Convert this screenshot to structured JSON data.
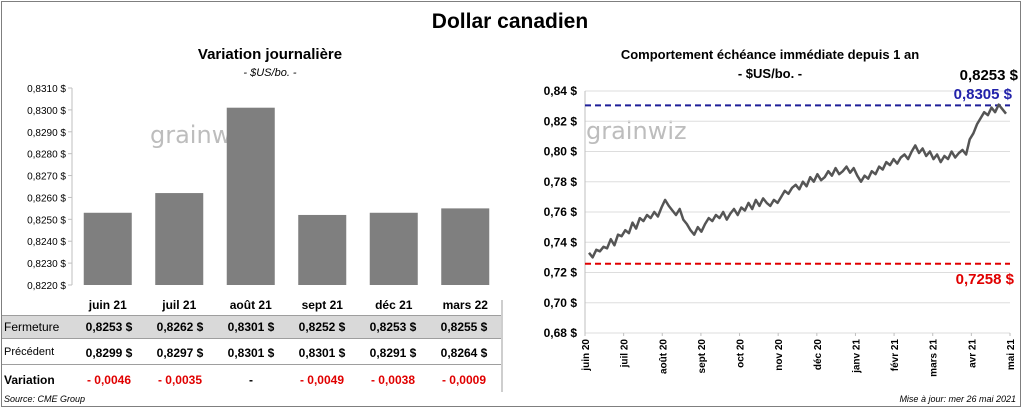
{
  "title": "Dollar canadien",
  "footer": {
    "source": "Source: CME Group",
    "updated": "Mise à jour: mer 26 mai 2021"
  },
  "left_chart": {
    "title": "Variation  journalière",
    "subtitle": "- $US/bo. -",
    "watermark": "grainwiz",
    "chart_data": {
      "type": "bar",
      "categories": [
        "juin 21",
        "juil 21",
        "août 21",
        "sept 21",
        "déc 21",
        "mars 22"
      ],
      "values": [
        0.8253,
        0.8262,
        0.8301,
        0.8252,
        0.8253,
        0.8255
      ],
      "ylim": [
        0.822,
        0.831
      ],
      "yticks": [
        "0,8220 $",
        "0,8230 $",
        "0,8240 $",
        "0,8250 $",
        "0,8260 $",
        "0,8270 $",
        "0,8280 $",
        "0,8290 $",
        "0,8300 $",
        "0,8310 $"
      ],
      "grid": false,
      "bar_color": "#7f7f7f"
    },
    "table": {
      "fermeture": {
        "label": "Fermeture",
        "values": [
          "0,8253  $",
          "0,8262  $",
          "0,8301  $",
          "0,8252  $",
          "0,8253  $",
          "0,8255  $"
        ]
      },
      "precedent": {
        "label": "Précédent",
        "values": [
          "0,8299  $",
          "0,8297  $",
          "0,8301  $",
          "0,8301  $",
          "0,8291  $",
          "0,8264  $"
        ]
      },
      "variation": {
        "label": "Variation",
        "values": [
          "- 0,0046",
          "- 0,0035",
          "-",
          "- 0,0049",
          "- 0,0038",
          "- 0,0009"
        ]
      }
    }
  },
  "right_chart": {
    "title": "Comportement échéance immédiate depuis 1 an",
    "subtitle": "- $US/bo. -",
    "watermark": "grainwiz",
    "annotations": {
      "last": "0,8253 $",
      "high": "0,8305 $",
      "low": "0,7258 $"
    },
    "chart_data": {
      "type": "line",
      "ylim": [
        0.68,
        0.84
      ],
      "yticks": [
        "0,68 $",
        "0,70 $",
        "0,72 $",
        "0,74 $",
        "0,76 $",
        "0,78 $",
        "0,80 $",
        "0,82 $",
        "0,84 $"
      ],
      "xticks": [
        "juin 20",
        "juil 20",
        "août 20",
        "sept 20",
        "oct 20",
        "nov 20",
        "déc 20",
        "janv 21",
        "févr 21",
        "mars 21",
        "avr 21",
        "mai 21"
      ],
      "high_line": 0.8305,
      "low_line": 0.7258,
      "high_color": "#1f1f99",
      "low_color": "#e00000",
      "line_color": "#555555",
      "grid": true,
      "series": [
        {
          "values": [
            0.733,
            0.73,
            0.735,
            0.734,
            0.737,
            0.736,
            0.742,
            0.738,
            0.745,
            0.744,
            0.748,
            0.746,
            0.753,
            0.749,
            0.756,
            0.754,
            0.758,
            0.756,
            0.76,
            0.757,
            0.763,
            0.768,
            0.764,
            0.761,
            0.758,
            0.762,
            0.755,
            0.752,
            0.748,
            0.745,
            0.75,
            0.747,
            0.752,
            0.756,
            0.754,
            0.758,
            0.756,
            0.76,
            0.755,
            0.759,
            0.762,
            0.758,
            0.763,
            0.761,
            0.766,
            0.762,
            0.768,
            0.764,
            0.769,
            0.766,
            0.764,
            0.768,
            0.766,
            0.77,
            0.774,
            0.772,
            0.776,
            0.778,
            0.775,
            0.78,
            0.777,
            0.783,
            0.78,
            0.785,
            0.781,
            0.783,
            0.787,
            0.784,
            0.789,
            0.785,
            0.787,
            0.79,
            0.786,
            0.789,
            0.784,
            0.78,
            0.784,
            0.782,
            0.787,
            0.785,
            0.79,
            0.788,
            0.793,
            0.791,
            0.795,
            0.792,
            0.796,
            0.798,
            0.795,
            0.8,
            0.804,
            0.799,
            0.802,
            0.797,
            0.8,
            0.795,
            0.798,
            0.793,
            0.797,
            0.795,
            0.8,
            0.796,
            0.799,
            0.801,
            0.798,
            0.808,
            0.812,
            0.818,
            0.822,
            0.826,
            0.824,
            0.829,
            0.826,
            0.831,
            0.828,
            0.825
          ]
        }
      ]
    }
  }
}
